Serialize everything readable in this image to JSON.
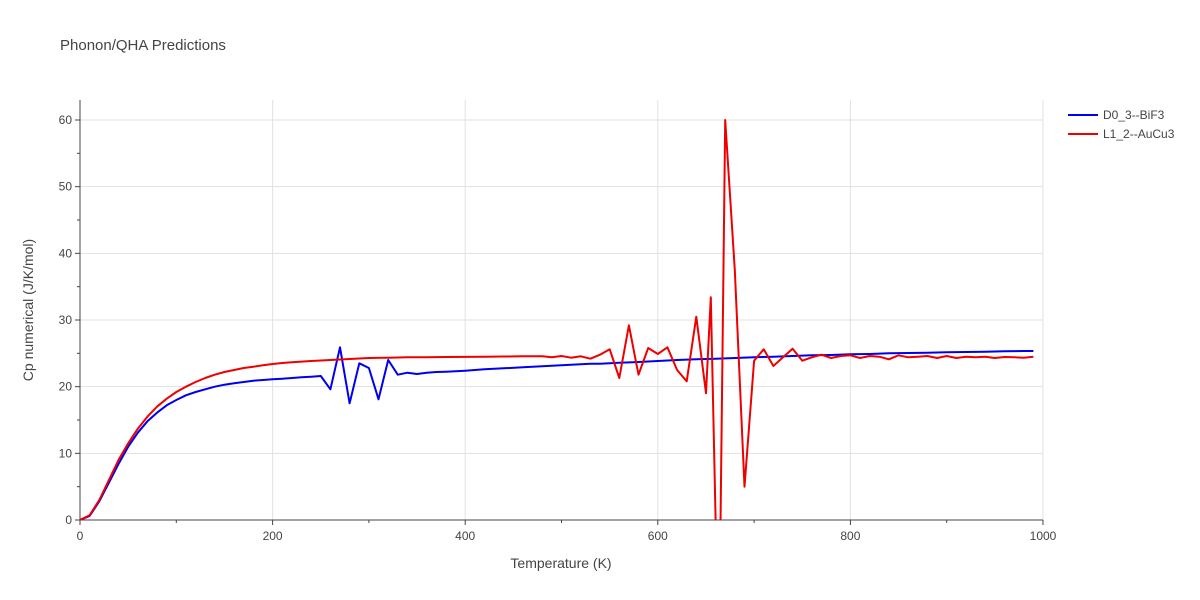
{
  "chart_data": {
    "type": "line",
    "title": "Phonon/QHA Predictions",
    "xlabel": "Temperature (K)",
    "ylabel": "Cp numerical (J/K/mol)",
    "xlim": [
      0,
      1000
    ],
    "ylim": [
      0,
      63
    ],
    "xticks": [
      0,
      200,
      400,
      600,
      800,
      1000
    ],
    "yticks": [
      0,
      10,
      20,
      30,
      40,
      50,
      60
    ],
    "grid": true,
    "legend": "top-right",
    "series": [
      {
        "name": "D0_3--BiF3",
        "color": "#0000ee",
        "x": [
          0,
          10,
          20,
          30,
          40,
          50,
          60,
          70,
          80,
          90,
          100,
          110,
          120,
          130,
          140,
          150,
          160,
          170,
          180,
          190,
          200,
          210,
          220,
          230,
          240,
          250,
          260,
          270,
          280,
          290,
          300,
          310,
          320,
          330,
          340,
          350,
          360,
          370,
          380,
          390,
          400,
          420,
          440,
          460,
          480,
          500,
          520,
          530,
          540,
          560,
          580,
          600,
          620,
          640,
          660,
          680,
          700,
          720,
          740,
          760,
          780,
          800,
          820,
          840,
          860,
          880,
          900,
          920,
          940,
          960,
          980,
          990
        ],
        "y": [
          0,
          0.6,
          2.8,
          5.6,
          8.4,
          11.0,
          13.1,
          14.8,
          16.1,
          17.2,
          18.0,
          18.7,
          19.2,
          19.6,
          20.0,
          20.3,
          20.5,
          20.7,
          20.9,
          21.0,
          21.1,
          21.2,
          21.3,
          21.4,
          21.5,
          21.6,
          19.6,
          25.9,
          17.5,
          23.5,
          22.8,
          18.1,
          24.0,
          21.8,
          22.1,
          21.9,
          22.1,
          22.2,
          22.25,
          22.3,
          22.4,
          22.6,
          22.75,
          22.9,
          23.05,
          23.2,
          23.35,
          23.45,
          23.45,
          23.6,
          23.7,
          23.85,
          24.0,
          24.1,
          24.2,
          24.3,
          24.4,
          24.5,
          24.6,
          24.7,
          24.75,
          24.85,
          24.9,
          25.0,
          25.05,
          25.1,
          25.15,
          25.2,
          25.25,
          25.3,
          25.35,
          25.35
        ]
      },
      {
        "name": "L1_2--AuCu3",
        "color": "#ee0000",
        "x": [
          0,
          10,
          20,
          30,
          40,
          50,
          60,
          70,
          80,
          90,
          100,
          110,
          120,
          130,
          140,
          150,
          160,
          170,
          180,
          190,
          200,
          210,
          220,
          240,
          260,
          280,
          300,
          320,
          340,
          360,
          380,
          400,
          420,
          440,
          460,
          480,
          490,
          500,
          510,
          520,
          530,
          540,
          550,
          560,
          570,
          580,
          590,
          600,
          610,
          620,
          630,
          640,
          650,
          655,
          660,
          665,
          670,
          680,
          690,
          700,
          710,
          720,
          730,
          740,
          750,
          760,
          770,
          780,
          790,
          800,
          810,
          820,
          830,
          840,
          850,
          860,
          870,
          880,
          890,
          900,
          910,
          920,
          930,
          940,
          950,
          960,
          970,
          980,
          990
        ],
        "y": [
          0,
          0.7,
          3.0,
          6.0,
          9.0,
          11.5,
          13.7,
          15.5,
          17.0,
          18.2,
          19.2,
          20.0,
          20.7,
          21.3,
          21.8,
          22.2,
          22.5,
          22.8,
          23.0,
          23.2,
          23.4,
          23.55,
          23.65,
          23.85,
          24.0,
          24.15,
          24.3,
          24.35,
          24.4,
          24.42,
          24.45,
          24.47,
          24.5,
          24.52,
          24.55,
          24.57,
          24.4,
          24.6,
          24.35,
          24.55,
          24.2,
          24.8,
          25.6,
          21.3,
          29.2,
          21.8,
          25.8,
          24.9,
          25.9,
          22.5,
          20.8,
          30.5,
          19.0,
          33.4,
          0,
          -2,
          60,
          37.5,
          5,
          23.9,
          25.6,
          23.1,
          24.4,
          25.7,
          23.9,
          24.4,
          24.8,
          24.3,
          24.6,
          24.7,
          24.3,
          24.6,
          24.5,
          24.1,
          24.7,
          24.4,
          24.5,
          24.6,
          24.3,
          24.6,
          24.3,
          24.5,
          24.4,
          24.5,
          24.3,
          24.45,
          24.4,
          24.35,
          24.5
        ]
      }
    ]
  }
}
